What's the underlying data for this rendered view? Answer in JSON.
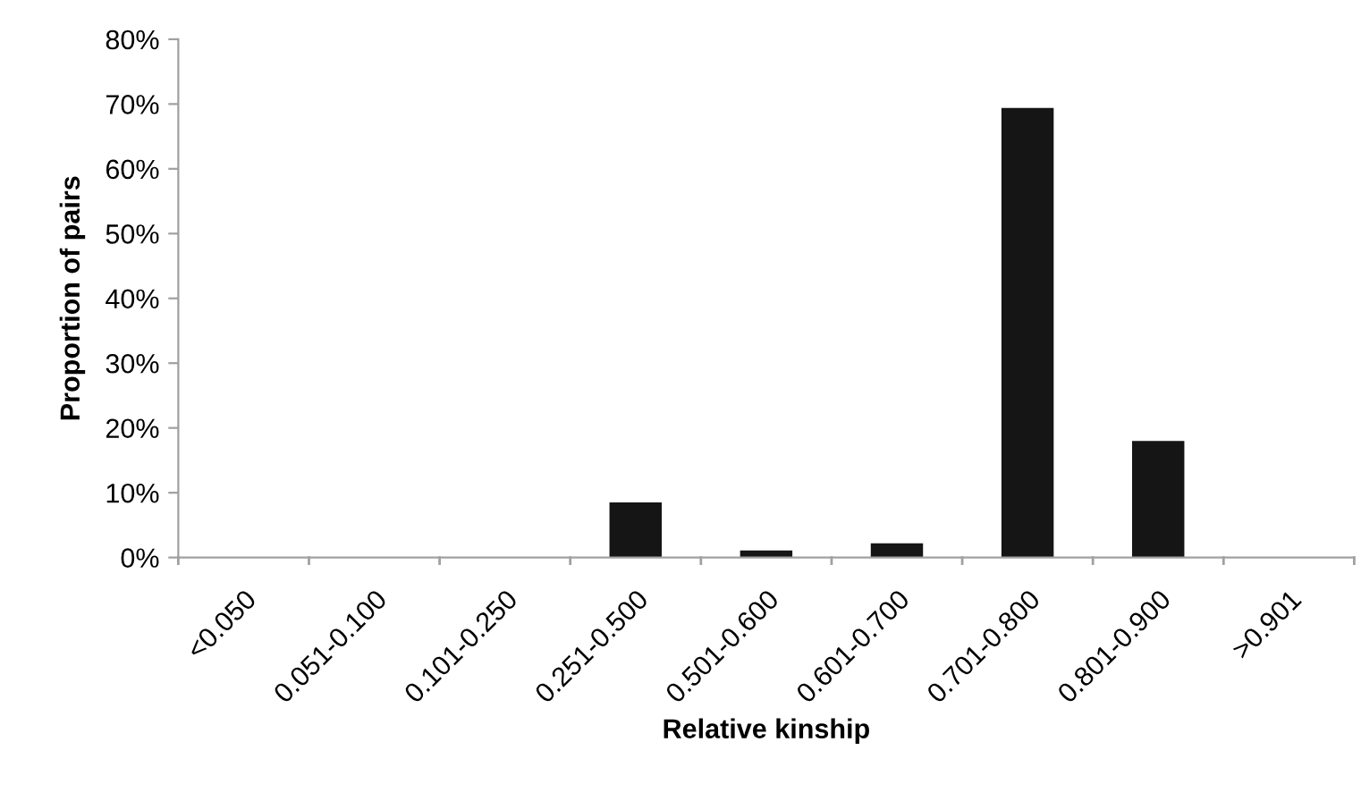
{
  "chart_data": {
    "type": "bar",
    "xlabel": "Relative kinship",
    "ylabel": "Proportion of pairs",
    "categories": [
      "<0.050",
      "0.051-0.100",
      "0.101-0.250",
      "0.251-0.500",
      "0.501-0.600",
      "0.601-0.700",
      "0.701-0.800",
      "0.801-0.900",
      ">0.901"
    ],
    "values": [
      0,
      0,
      0,
      8.5,
      1.1,
      2.2,
      69.4,
      18.0,
      0
    ],
    "color": "#151515",
    "ylim": [
      0,
      80
    ],
    "yticks": [
      {
        "value": 0,
        "label": "0%"
      },
      {
        "value": 10,
        "label": "10%"
      },
      {
        "value": 20,
        "label": "20%"
      },
      {
        "value": 30,
        "label": "30%"
      },
      {
        "value": 40,
        "label": "40%"
      },
      {
        "value": 50,
        "label": "50%"
      },
      {
        "value": 60,
        "label": "60%"
      },
      {
        "value": 70,
        "label": "70%"
      },
      {
        "value": 80,
        "label": "80%"
      }
    ],
    "grid": false
  }
}
